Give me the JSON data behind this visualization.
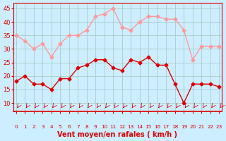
{
  "x": [
    0,
    1,
    2,
    3,
    4,
    5,
    6,
    7,
    8,
    9,
    10,
    11,
    12,
    13,
    14,
    15,
    16,
    17,
    18,
    19,
    20,
    21,
    22,
    23
  ],
  "wind_avg": [
    18,
    20,
    17,
    17,
    15,
    19,
    19,
    23,
    24,
    26,
    26,
    23,
    22,
    26,
    25,
    27,
    24,
    24,
    17,
    10,
    17,
    17,
    17,
    16
  ],
  "wind_gust": [
    35,
    33,
    30,
    32,
    27,
    32,
    35,
    35,
    37,
    42,
    43,
    45,
    38,
    37,
    40,
    42,
    42,
    41,
    41,
    37,
    26,
    31,
    31,
    31
  ],
  "avg_color": "#dd0000",
  "gust_color": "#ff9999",
  "bg_color": "#cceeff",
  "grid_color": "#aacccc",
  "xlabel": "Vent moyen/en rafales ( km/h )",
  "ylabel_ticks": [
    10,
    15,
    20,
    25,
    30,
    35,
    40,
    45
  ],
  "ylim": [
    7,
    47
  ],
  "xlim": [
    -0.3,
    23.3
  ],
  "title_color": "#dd0000",
  "xlabel_color": "#dd0000",
  "tick_color": "#dd0000"
}
